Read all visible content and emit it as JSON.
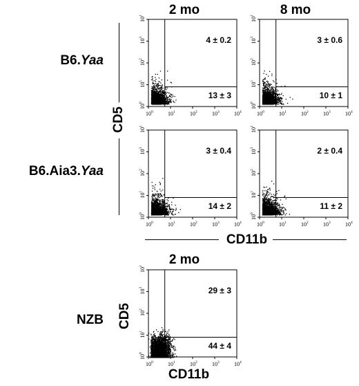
{
  "column_headers": [
    "2 mo",
    "8 mo"
  ],
  "row_labels": [
    {
      "prefix": "B6.",
      "italic": "Yaa"
    },
    {
      "prefix": "B6.Aia3.",
      "italic": "Yaa"
    },
    {
      "prefix": "NZB",
      "italic": ""
    }
  ],
  "axis_titles": {
    "cd5": "CD5",
    "cd11b": "CD11b"
  },
  "bottom_header": "2 mo",
  "chart_data": [
    {
      "type": "scatter",
      "row": "B6.Yaa",
      "column": "2 mo",
      "xlabel": "CD11b",
      "ylabel": "CD5",
      "scale": "log",
      "xlim": [
        1,
        10000
      ],
      "ylim": [
        1,
        10000
      ],
      "quadrant_values": {
        "upper_right": "4 ± 0.2",
        "lower_right": "13 ± 3"
      }
    },
    {
      "type": "scatter",
      "row": "B6.Yaa",
      "column": "8 mo",
      "xlabel": "CD11b",
      "ylabel": "CD5",
      "scale": "log",
      "xlim": [
        1,
        10000
      ],
      "ylim": [
        1,
        10000
      ],
      "quadrant_values": {
        "upper_right": "3 ± 0.6",
        "lower_right": "10 ± 1"
      }
    },
    {
      "type": "scatter",
      "row": "B6.Aia3.Yaa",
      "column": "2 mo",
      "xlabel": "CD11b",
      "ylabel": "CD5",
      "scale": "log",
      "xlim": [
        1,
        10000
      ],
      "ylim": [
        1,
        10000
      ],
      "quadrant_values": {
        "upper_right": "3 ± 0.4",
        "lower_right": "14 ± 2"
      }
    },
    {
      "type": "scatter",
      "row": "B6.Aia3.Yaa",
      "column": "8 mo",
      "xlabel": "CD11b",
      "ylabel": "CD5",
      "scale": "log",
      "xlim": [
        1,
        10000
      ],
      "ylim": [
        1,
        10000
      ],
      "quadrant_values": {
        "upper_right": "2 ± 0.4",
        "lower_right": "11 ± 2"
      }
    },
    {
      "type": "scatter",
      "row": "NZB",
      "column": "2 mo",
      "xlabel": "CD11b",
      "ylabel": "CD5",
      "scale": "log",
      "xlim": [
        1,
        10000
      ],
      "ylim": [
        1,
        10000
      ],
      "quadrant_values": {
        "upper_right": "29 ± 3",
        "lower_right": "44 ± 4"
      }
    }
  ],
  "tick_labels": [
    "10",
    "10",
    "10",
    "10",
    "10"
  ],
  "tick_exponents": [
    "0",
    "1",
    "2",
    "3",
    "4"
  ]
}
